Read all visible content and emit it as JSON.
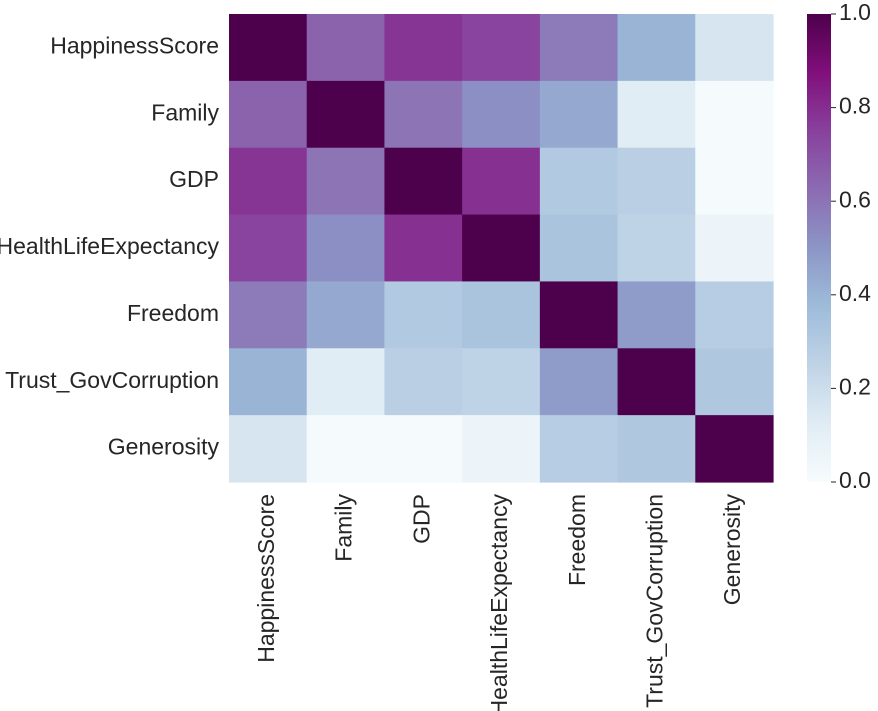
{
  "chart_data": {
    "type": "heatmap",
    "title": "",
    "xlabel": "",
    "ylabel": "",
    "labels": [
      "HappinessScore",
      "Family",
      "GDP",
      "HealthLifeExpectancy",
      "Freedom",
      "Trust_GovCorruption",
      "Generosity"
    ],
    "matrix": [
      [
        1.0,
        0.65,
        0.78,
        0.74,
        0.58,
        0.4,
        0.16
      ],
      [
        0.65,
        1.0,
        0.6,
        0.52,
        0.44,
        0.12,
        0.01
      ],
      [
        0.78,
        0.6,
        1.0,
        0.79,
        0.3,
        0.27,
        0.01
      ],
      [
        0.74,
        0.52,
        0.79,
        1.0,
        0.33,
        0.25,
        0.06
      ],
      [
        0.58,
        0.44,
        0.3,
        0.33,
        1.0,
        0.48,
        0.28
      ],
      [
        0.4,
        0.12,
        0.27,
        0.25,
        0.48,
        1.0,
        0.31
      ],
      [
        0.16,
        0.01,
        0.01,
        0.06,
        0.28,
        0.31,
        1.0
      ]
    ],
    "colormap": "BuPu",
    "colormap_stops": [
      "#f7fcfd",
      "#e0ecf4",
      "#bfd3e6",
      "#9ebcda",
      "#8c96c6",
      "#8c6bb1",
      "#88419d",
      "#810f7c",
      "#4d004b"
    ],
    "colorbar": {
      "vmin": 0.0,
      "vmax": 1.0,
      "ticks": [
        0.0,
        0.2,
        0.4,
        0.6,
        0.8,
        1.0
      ],
      "tick_labels": [
        "0.0",
        "0.2",
        "0.4",
        "0.6",
        "0.8",
        "1.0"
      ],
      "position": "right"
    },
    "grid": false
  }
}
